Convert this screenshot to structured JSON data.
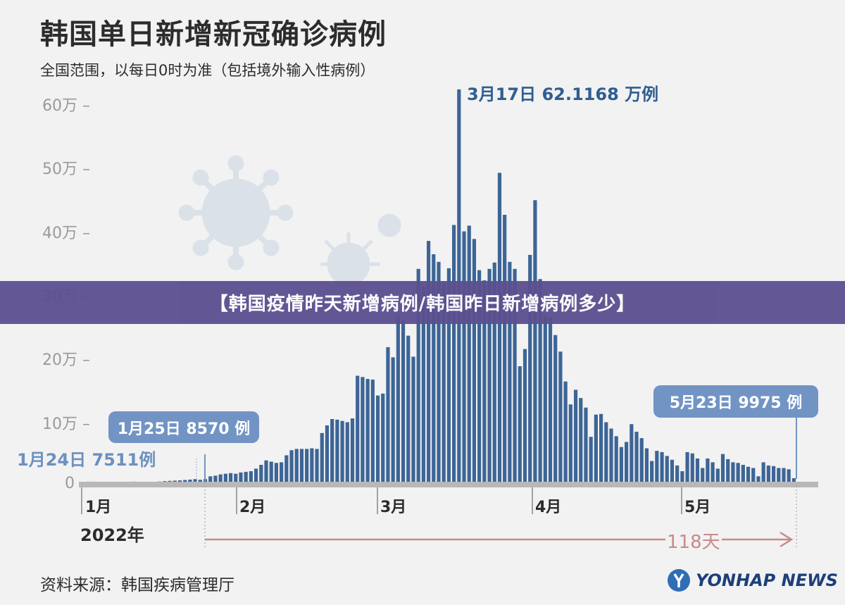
{
  "header": {
    "title": "韩国单日新增新冠确诊病例",
    "subtitle": "全国范围，以每日0时为准（包括境外输入性病例）"
  },
  "banner": {
    "text": "【韩国疫情昨天新增病例/韩国昨日新增病例多少】"
  },
  "annotations": {
    "peak": "3月17日 62.1168 万例",
    "jan25": "1月25日 8570 例",
    "jan24": "1月24日 7511例",
    "may23": "5月23日 9975 例",
    "duration": "118天",
    "year": "2022年"
  },
  "footer": {
    "source": "资料来源：韩国疾病管理厅",
    "logo": "YONHAP NEWS"
  },
  "colors": {
    "bar": "#3d6596",
    "accent": "#7294c4",
    "arrow": "#c98a8a",
    "banner": "#5b4f8f"
  },
  "chart_data": {
    "type": "bar",
    "unit": "万",
    "ylim": [
      0,
      60
    ],
    "y_ticks": [
      0,
      10,
      20,
      30,
      40,
      50,
      60
    ],
    "y_tick_labels": [
      "0",
      "10万",
      "20万",
      "30万",
      "40万",
      "50万",
      "60万"
    ],
    "x_month_labels": [
      "1月",
      "2月",
      "3月",
      "4月",
      "5月"
    ],
    "grid": false,
    "series": [
      {
        "values": [
          0.39,
          0.45,
          0.45,
          0.42,
          0.43,
          0.41,
          0.39,
          0.4,
          0.42,
          0.45,
          0.46,
          0.43,
          0.42,
          0.41,
          0.44,
          0.48,
          0.54,
          0.58,
          0.62,
          0.66,
          0.72,
          0.78,
          0.85,
          0.751,
          0.857,
          1.3,
          1.4,
          1.6,
          1.7,
          1.8,
          1.7,
          1.9,
          2.0,
          2.1,
          2.5,
          3.1,
          3.8,
          3.6,
          3.4,
          3.5,
          4.6,
          5.4,
          5.6,
          5.6,
          5.6,
          5.7,
          5.6,
          8.1,
          9.3,
          10.3,
          10.2,
          10.0,
          9.8,
          10.4,
          17.1,
          16.9,
          16.6,
          16.5,
          14.0,
          14.3,
          21.6,
          20.0,
          26.4,
          25.8,
          23.4,
          20.1,
          33.9,
          31.1,
          38.3,
          36.2,
          35.0,
          31.9,
          34.0,
          40.8,
          62.1168,
          39.8,
          40.7,
          38.6,
          33.7,
          32.1,
          33.9,
          34.9,
          49.0,
          42.4,
          35.0,
          33.9,
          18.6,
          21.3,
          36.1,
          44.7,
          32.3,
          26.5,
          26.3,
          23.5,
          20.9,
          16.2,
          12.6,
          14.9,
          13.6,
          12.1,
          7.5,
          11.0,
          11.1,
          9.8,
          8.8,
          7.6,
          5.9,
          6.7,
          9.5,
          8.3,
          7.3,
          5.7,
          3.7,
          5.3,
          5.1,
          4.5,
          3.9,
          3.0,
          2.1,
          5.1,
          4.9,
          4.1,
          2.6,
          4.1,
          3.5,
          2.5,
          4.8,
          4.0,
          3.5,
          3.4,
          3.1,
          2.8,
          2.6,
          1.3,
          3.5,
          3.0,
          2.9,
          2.6,
          2.6,
          2.4,
          0.9975
        ]
      }
    ]
  }
}
